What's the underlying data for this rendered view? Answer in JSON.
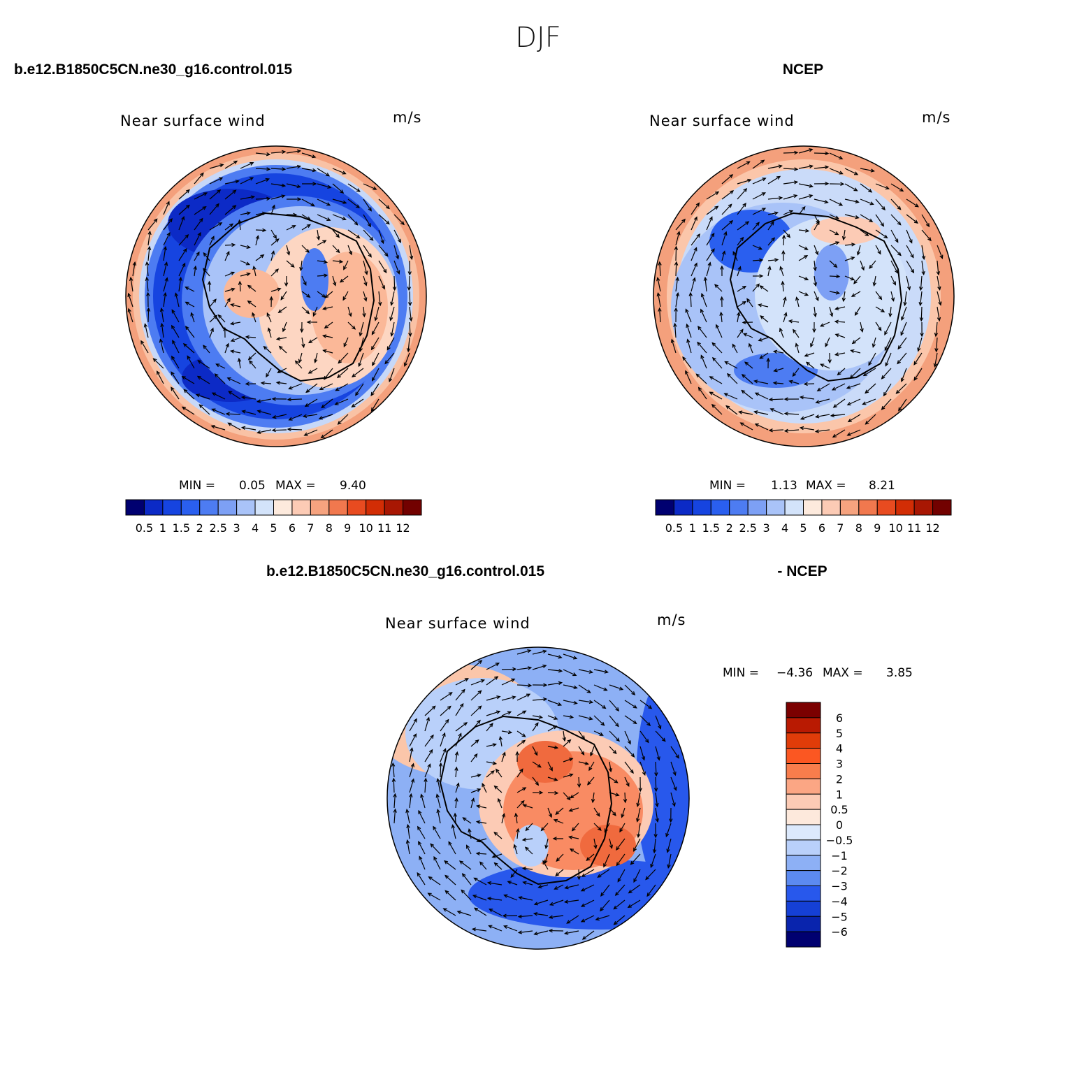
{
  "figure": {
    "title": "DJF"
  },
  "chart_data": [
    {
      "type": "heatmap",
      "subtype": "polar-stereographic vector overlay",
      "case_label": "b.e12.B1850C5CN.ne30_g16.control.015",
      "title": "Near surface wind",
      "units": "m/s",
      "min_label": "MIN =",
      "min_value": "0.05",
      "max_label": "MAX =",
      "max_value": "9.40",
      "levels": [
        "0.5",
        "1",
        "1.5",
        "2",
        "2.5",
        "3",
        "4",
        "5",
        "6",
        "7",
        "8",
        "9",
        "10",
        "11",
        "12"
      ],
      "colors": [
        "#000070",
        "#0c2ac6",
        "#1644e0",
        "#2a5fef",
        "#4d7cf2",
        "#7da0f5",
        "#a9c3f8",
        "#d3e3fa",
        "#fdeadd",
        "#fccbb5",
        "#f6a37f",
        "#f1784e",
        "#e84b20",
        "#d22d05",
        "#a81703",
        "#720100"
      ]
    },
    {
      "type": "heatmap",
      "subtype": "polar-stereographic vector overlay",
      "case_label": "NCEP",
      "title": "Near surface wind",
      "units": "m/s",
      "min_label": "MIN =",
      "min_value": "1.13",
      "max_label": "MAX =",
      "max_value": "8.21",
      "levels": [
        "0.5",
        "1",
        "1.5",
        "2",
        "2.5",
        "3",
        "4",
        "5",
        "6",
        "7",
        "8",
        "9",
        "10",
        "11",
        "12"
      ],
      "colors": [
        "#000070",
        "#0c2ac6",
        "#1644e0",
        "#2a5fef",
        "#4d7cf2",
        "#7da0f5",
        "#a9c3f8",
        "#d3e3fa",
        "#fdeadd",
        "#fccbb5",
        "#f6a37f",
        "#f1784e",
        "#e84b20",
        "#d22d05",
        "#a81703",
        "#720100"
      ]
    },
    {
      "type": "heatmap",
      "subtype": "polar-stereographic vector overlay (difference)",
      "case_label": "b.e12.B1850C5CN.ne30_g16.control.015",
      "case_label_right": "- NCEP",
      "title": "Near surface wind",
      "units": "m/s",
      "min_label": "MIN =",
      "min_value": "−4.36",
      "max_label": "MAX =",
      "max_value": "3.85",
      "levels": [
        "6",
        "5",
        "4",
        "3",
        "2",
        "1",
        "0.5",
        "0",
        "−0.5",
        "−1",
        "−2",
        "−3",
        "−4",
        "−5",
        "−6"
      ],
      "colors": [
        "#7b0000",
        "#b91a02",
        "#e03c09",
        "#fb5722",
        "#f87d4c",
        "#fba684",
        "#fccbb5",
        "#fde9dc",
        "#dce9fc",
        "#b9d0fa",
        "#8db0f5",
        "#5c8af0",
        "#2858ec",
        "#1540d6",
        "#0924ad",
        "#000070"
      ]
    }
  ]
}
